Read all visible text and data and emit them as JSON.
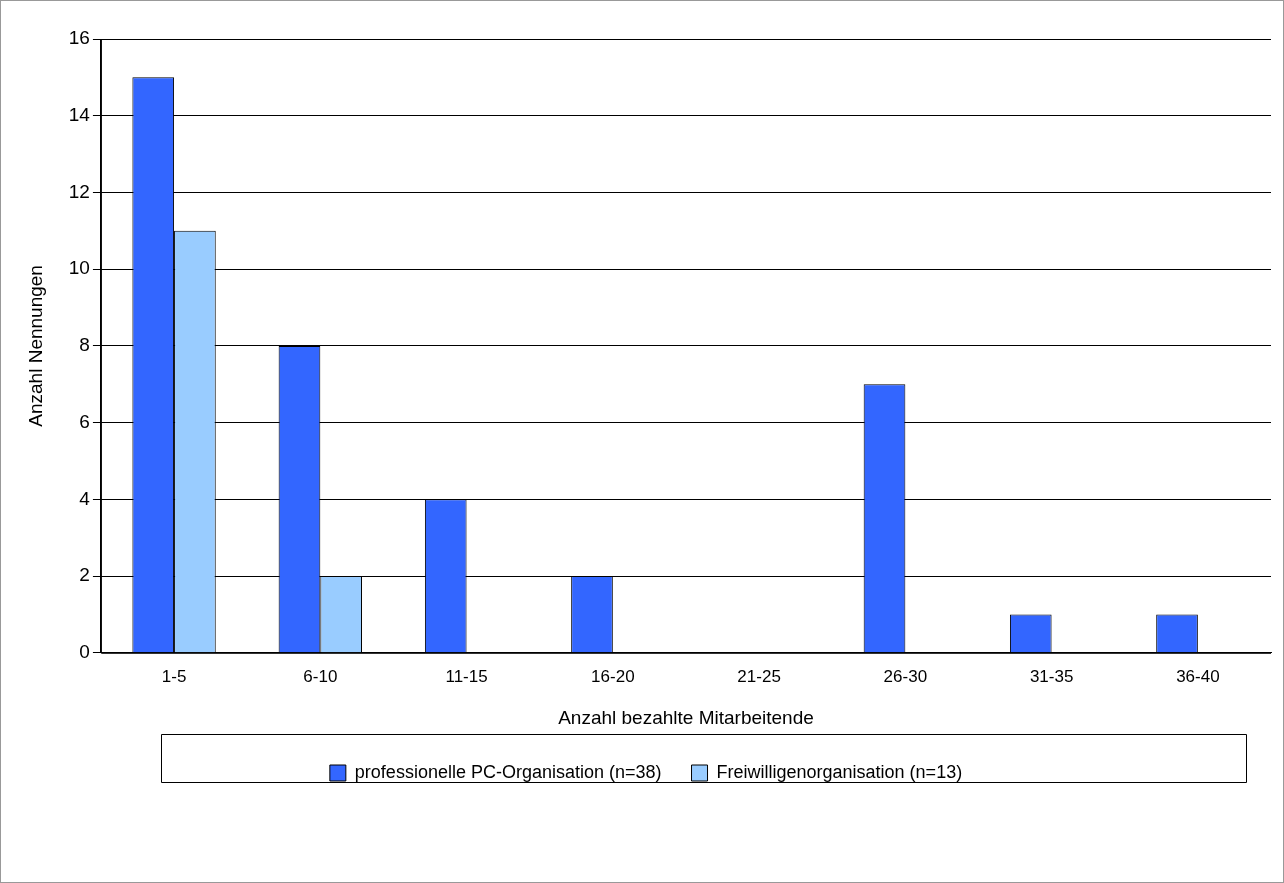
{
  "chart_data": {
    "type": "bar",
    "xlabel": "Anzahl bezahlte Mitarbeitende",
    "ylabel": "Anzahl Nennungen",
    "categories": [
      "1-5",
      "6-10",
      "11-15",
      "16-20",
      "21-25",
      "26-30",
      "31-35",
      "36-40"
    ],
    "series": [
      {
        "name": "professionelle PC-Organisation (n=38)",
        "color": "#3366ff",
        "values": [
          15,
          8,
          4,
          2,
          0,
          7,
          1,
          1
        ]
      },
      {
        "name": "Freiwilligenorganisation (n=13)",
        "color": "#99ccff",
        "values": [
          11,
          2,
          0,
          0,
          0,
          0,
          0,
          0
        ]
      }
    ],
    "ylim": [
      0,
      16
    ],
    "yticks": [
      0,
      2,
      4,
      6,
      8,
      10,
      12,
      14,
      16
    ],
    "grid": "y",
    "legend": "bottom"
  }
}
